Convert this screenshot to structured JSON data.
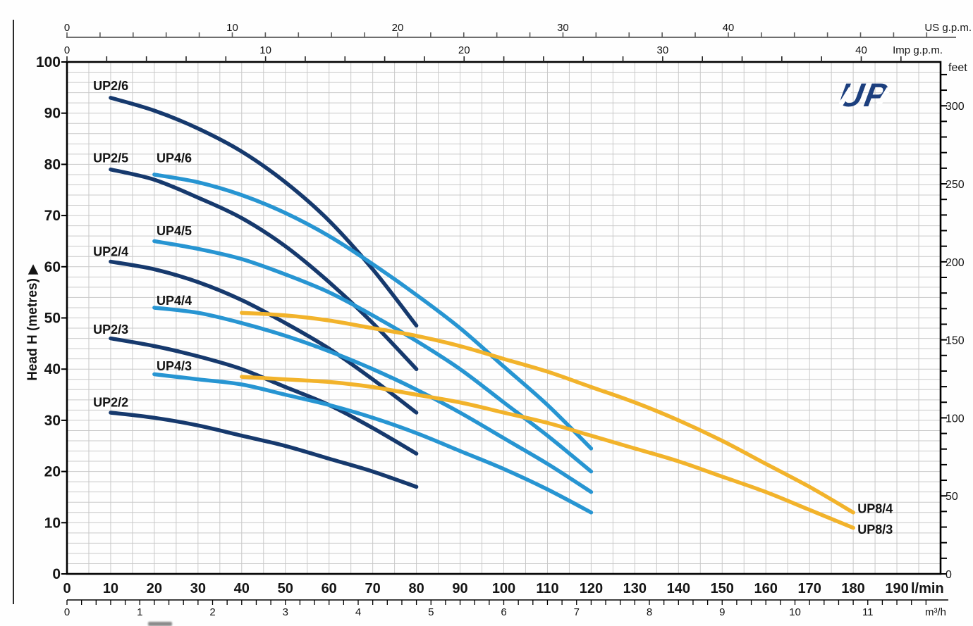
{
  "logo": {
    "text": "UP",
    "color": "#1c3f7e"
  },
  "chart_data": {
    "type": "line",
    "x_axes": {
      "lmin": {
        "unit": "l/min",
        "tick_labels": [
          0,
          10,
          20,
          30,
          40,
          50,
          60,
          70,
          80,
          90,
          100,
          110,
          120,
          130,
          140,
          150,
          160,
          170,
          180,
          190
        ]
      },
      "m3h": {
        "unit": "m³/h",
        "tick_labels": [
          0,
          1,
          2,
          3,
          4,
          5,
          6,
          7,
          8,
          9,
          10,
          11
        ],
        "minor_step": 0.2,
        "minor_max": 11.8,
        "lmin_per_unit": 16.6667
      },
      "us_gpm": {
        "unit": "US g.p.m.",
        "tick_labels": [
          0,
          10,
          20,
          30,
          40
        ],
        "minor_step": 2,
        "minor_max": 52,
        "lmin_per_unit": 3.785
      },
      "imp_gpm": {
        "unit": "Imp g.p.m.",
        "tick_labels": [
          0,
          10,
          20,
          30,
          40
        ],
        "minor_step": 2,
        "minor_max": 42,
        "lmin_per_unit": 4.546
      }
    },
    "y_axes": {
      "metres": {
        "title": "Head H (metres)",
        "title_arrow": "▶",
        "tick_labels": [
          0,
          10,
          20,
          30,
          40,
          50,
          60,
          70,
          80,
          90,
          100
        ]
      },
      "feet": {
        "unit": "feet",
        "tick_labels": [
          0,
          50,
          100,
          150,
          200,
          250,
          300
        ],
        "minor_step": 10,
        "minor_max": 320,
        "m_per_unit": 0.3048
      }
    },
    "x_range_lmin": [
      0,
      200
    ],
    "y_range_m": [
      0,
      100
    ],
    "grid": {
      "x_step_lmin": 5,
      "y_step_m": 2,
      "color": "#c9c9c9"
    },
    "series_colors": {
      "UP2": "#16396d",
      "UP4": "#2795d2",
      "UP8": "#f2b32b"
    },
    "series": [
      {
        "name": "UP2/6",
        "family": "UP2",
        "label_at": [
          6,
          95.3
        ],
        "points": [
          [
            10,
            93
          ],
          [
            20,
            90.5
          ],
          [
            30,
            87
          ],
          [
            40,
            82.5
          ],
          [
            50,
            76.5
          ],
          [
            60,
            69
          ],
          [
            70,
            59.5
          ],
          [
            80,
            48.5
          ]
        ]
      },
      {
        "name": "UP2/5",
        "family": "UP2",
        "label_at": [
          6,
          81.2
        ],
        "points": [
          [
            10,
            79
          ],
          [
            20,
            77
          ],
          [
            30,
            73.5
          ],
          [
            40,
            69.5
          ],
          [
            50,
            64
          ],
          [
            60,
            57
          ],
          [
            70,
            49
          ],
          [
            80,
            40
          ]
        ]
      },
      {
        "name": "UP2/4",
        "family": "UP2",
        "label_at": [
          6,
          62.9
        ],
        "points": [
          [
            10,
            61
          ],
          [
            20,
            59.5
          ],
          [
            30,
            57
          ],
          [
            40,
            53.5
          ],
          [
            50,
            49
          ],
          [
            60,
            44
          ],
          [
            70,
            38
          ],
          [
            80,
            31.5
          ]
        ]
      },
      {
        "name": "UP2/3",
        "family": "UP2",
        "label_at": [
          6,
          47.7
        ],
        "points": [
          [
            10,
            46
          ],
          [
            20,
            44.5
          ],
          [
            30,
            42.5
          ],
          [
            40,
            40
          ],
          [
            50,
            36.5
          ],
          [
            60,
            33
          ],
          [
            70,
            28.5
          ],
          [
            80,
            23.5
          ]
        ]
      },
      {
        "name": "UP2/2",
        "family": "UP2",
        "label_at": [
          6,
          33.5
        ],
        "points": [
          [
            10,
            31.5
          ],
          [
            20,
            30.5
          ],
          [
            30,
            29
          ],
          [
            40,
            27
          ],
          [
            50,
            25
          ],
          [
            60,
            22.5
          ],
          [
            70,
            20
          ],
          [
            80,
            17
          ]
        ]
      },
      {
        "name": "UP4/6",
        "family": "UP4",
        "label_at": [
          20.5,
          81.2
        ],
        "points": [
          [
            20,
            78
          ],
          [
            30,
            76.5
          ],
          [
            40,
            74
          ],
          [
            50,
            70.5
          ],
          [
            60,
            66
          ],
          [
            70,
            60.5
          ],
          [
            80,
            54.5
          ],
          [
            90,
            48
          ],
          [
            100,
            40.5
          ],
          [
            110,
            33
          ],
          [
            120,
            24.5
          ]
        ]
      },
      {
        "name": "UP4/5",
        "family": "UP4",
        "label_at": [
          20.5,
          67
        ],
        "points": [
          [
            20,
            65
          ],
          [
            30,
            63.5
          ],
          [
            40,
            61.5
          ],
          [
            50,
            58.5
          ],
          [
            60,
            55
          ],
          [
            70,
            50.5
          ],
          [
            80,
            45.5
          ],
          [
            90,
            40
          ],
          [
            100,
            33.5
          ],
          [
            110,
            27
          ],
          [
            120,
            20
          ]
        ]
      },
      {
        "name": "UP4/4",
        "family": "UP4",
        "label_at": [
          20.5,
          53.4
        ],
        "points": [
          [
            20,
            52
          ],
          [
            30,
            51
          ],
          [
            40,
            49
          ],
          [
            50,
            46.5
          ],
          [
            60,
            43.5
          ],
          [
            70,
            40
          ],
          [
            80,
            36
          ],
          [
            90,
            31.5
          ],
          [
            100,
            26.5
          ],
          [
            110,
            21.5
          ],
          [
            120,
            16
          ]
        ]
      },
      {
        "name": "UP4/3",
        "family": "UP4",
        "label_at": [
          20.5,
          40.6
        ],
        "points": [
          [
            20,
            39
          ],
          [
            30,
            38
          ],
          [
            40,
            37
          ],
          [
            50,
            35
          ],
          [
            60,
            33
          ],
          [
            70,
            30.5
          ],
          [
            80,
            27.5
          ],
          [
            90,
            24
          ],
          [
            100,
            20.5
          ],
          [
            110,
            16.5
          ],
          [
            120,
            12
          ]
        ]
      },
      {
        "name": "UP8/4",
        "family": "UP8",
        "label_at": [
          181,
          12.7
        ],
        "points": [
          [
            40,
            51
          ],
          [
            50,
            50.5
          ],
          [
            60,
            49.5
          ],
          [
            70,
            48
          ],
          [
            80,
            46.5
          ],
          [
            90,
            44.5
          ],
          [
            100,
            42
          ],
          [
            110,
            39.5
          ],
          [
            120,
            36.5
          ],
          [
            130,
            33.5
          ],
          [
            140,
            30
          ],
          [
            150,
            26
          ],
          [
            160,
            21.5
          ],
          [
            170,
            17
          ],
          [
            180,
            12
          ]
        ]
      },
      {
        "name": "UP8/3",
        "family": "UP8",
        "label_at": [
          181,
          8.7
        ],
        "points": [
          [
            40,
            38.5
          ],
          [
            50,
            38
          ],
          [
            60,
            37.5
          ],
          [
            70,
            36.5
          ],
          [
            80,
            35
          ],
          [
            90,
            33.5
          ],
          [
            100,
            31.5
          ],
          [
            110,
            29.5
          ],
          [
            120,
            27
          ],
          [
            130,
            24.5
          ],
          [
            140,
            22
          ],
          [
            150,
            19
          ],
          [
            160,
            16
          ],
          [
            170,
            12.5
          ],
          [
            180,
            9
          ]
        ]
      }
    ]
  }
}
